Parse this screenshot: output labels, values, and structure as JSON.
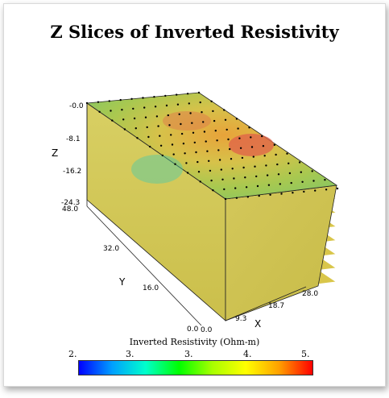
{
  "title": "Z Slices of Inverted Resistivity",
  "chart_data": {
    "type": "3d-slices",
    "title": "Z Slices of Inverted Resistivity",
    "axes": {
      "x": {
        "label": "X",
        "ticks": [
          "0.0",
          "9.3",
          "18.7",
          "28.0"
        ],
        "range": [
          0.0,
          28.0
        ]
      },
      "y": {
        "label": "Y",
        "ticks": [
          "0.0",
          "16.0",
          "32.0",
          "48.0"
        ],
        "range": [
          0.0,
          48.0
        ]
      },
      "z": {
        "label": "Z",
        "ticks": [
          "-0.0",
          "-8.1",
          "-16.2",
          "-24.3"
        ],
        "range": [
          -24.3,
          0.0
        ]
      }
    },
    "colorbar": {
      "label": "Inverted Resistivity (Ohm-m)",
      "ticks": [
        "2.",
        "3.",
        "3.",
        "4.",
        "5."
      ],
      "colors": [
        "#0000ff",
        "#00a0ff",
        "#00ffcc",
        "#00ff00",
        "#a8ff00",
        "#ffff00",
        "#ffa000",
        "#ff0000"
      ]
    },
    "slices": 8,
    "grid_markers": "true"
  }
}
